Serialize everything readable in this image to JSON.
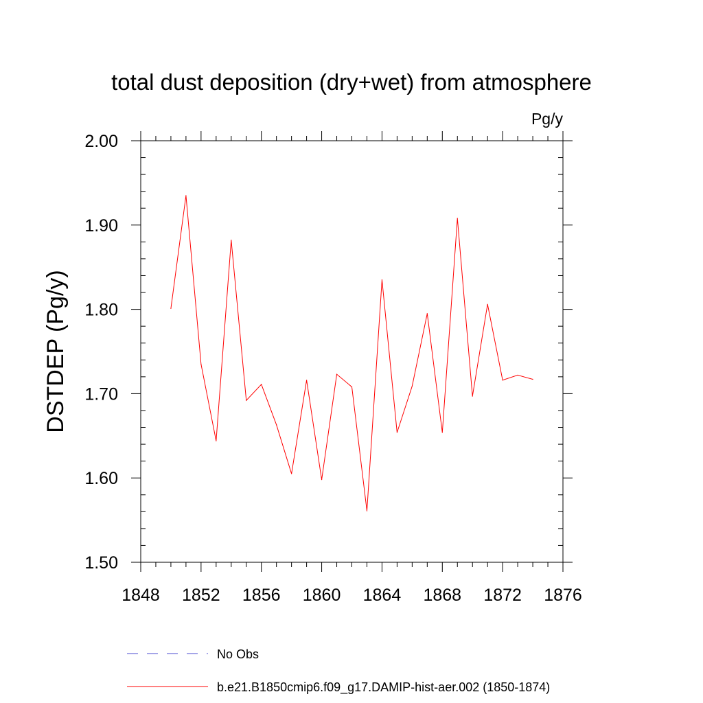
{
  "colors": {
    "background": "#ffffff",
    "axis": "#000000",
    "series_line": "#ff0000",
    "obs_line": "#4b4bd2"
  },
  "chart_data": {
    "type": "line",
    "title": "total dust deposition (dry+wet) from atmosphere",
    "units_label": "Pg/y",
    "xlabel": "",
    "ylabel": "DSTDEP  (Pg/y)",
    "xlim": [
      1848,
      1876
    ],
    "ylim": [
      1.5,
      2.0
    ],
    "x_ticks": [
      1848,
      1852,
      1856,
      1860,
      1864,
      1868,
      1872,
      1876
    ],
    "y_ticks": [
      "1.50",
      "1.60",
      "1.70",
      "1.80",
      "1.90",
      "2.00"
    ],
    "grid": false,
    "legend_position": "bottom",
    "legend": [
      {
        "label": "No Obs",
        "color": "#4b4bd2",
        "style": "dashed"
      },
      {
        "label": "b.e21.B1850cmip6.f09_g17.DAMIP-hist-aer.002 (1850-1874)",
        "color": "#ff0000",
        "style": "solid"
      }
    ],
    "series": [
      {
        "name": "b.e21.B1850cmip6.f09_g17.DAMIP-hist-aer.002 (1850-1874)",
        "color": "#ff0000",
        "x": [
          1850,
          1851,
          1852,
          1853,
          1854,
          1855,
          1856,
          1857,
          1858,
          1859,
          1860,
          1861,
          1862,
          1863,
          1864,
          1865,
          1866,
          1867,
          1868,
          1869,
          1870,
          1871,
          1872,
          1873,
          1874
        ],
        "y": [
          1.801,
          1.935,
          1.735,
          1.644,
          1.882,
          1.692,
          1.711,
          1.663,
          1.605,
          1.716,
          1.598,
          1.723,
          1.708,
          1.561,
          1.835,
          1.654,
          1.709,
          1.795,
          1.654,
          1.908,
          1.697,
          1.806,
          1.716,
          1.722,
          1.717
        ]
      }
    ]
  }
}
